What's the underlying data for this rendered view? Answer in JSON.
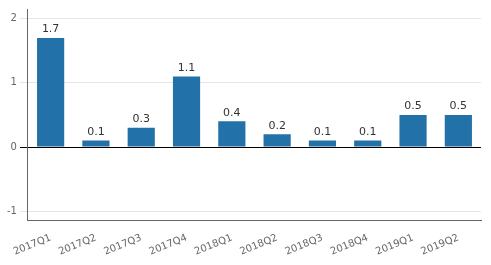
{
  "chart_data": {
    "type": "bar",
    "categories": [
      "2017Q1",
      "2017Q2",
      "2017Q3",
      "2017Q4",
      "2018Q1",
      "2018Q2",
      "2018Q3",
      "2018Q4",
      "2019Q1",
      "2019Q2"
    ],
    "values": [
      1.7,
      0.1,
      0.3,
      1.1,
      0.4,
      0.2,
      0.1,
      0.1,
      0.5,
      0.5
    ],
    "color": "#2271a8",
    "ylim": [
      -1.15,
      2.15
    ],
    "yticks": [
      -1,
      0,
      1,
      2
    ],
    "grid": true,
    "data_labels": true
  }
}
